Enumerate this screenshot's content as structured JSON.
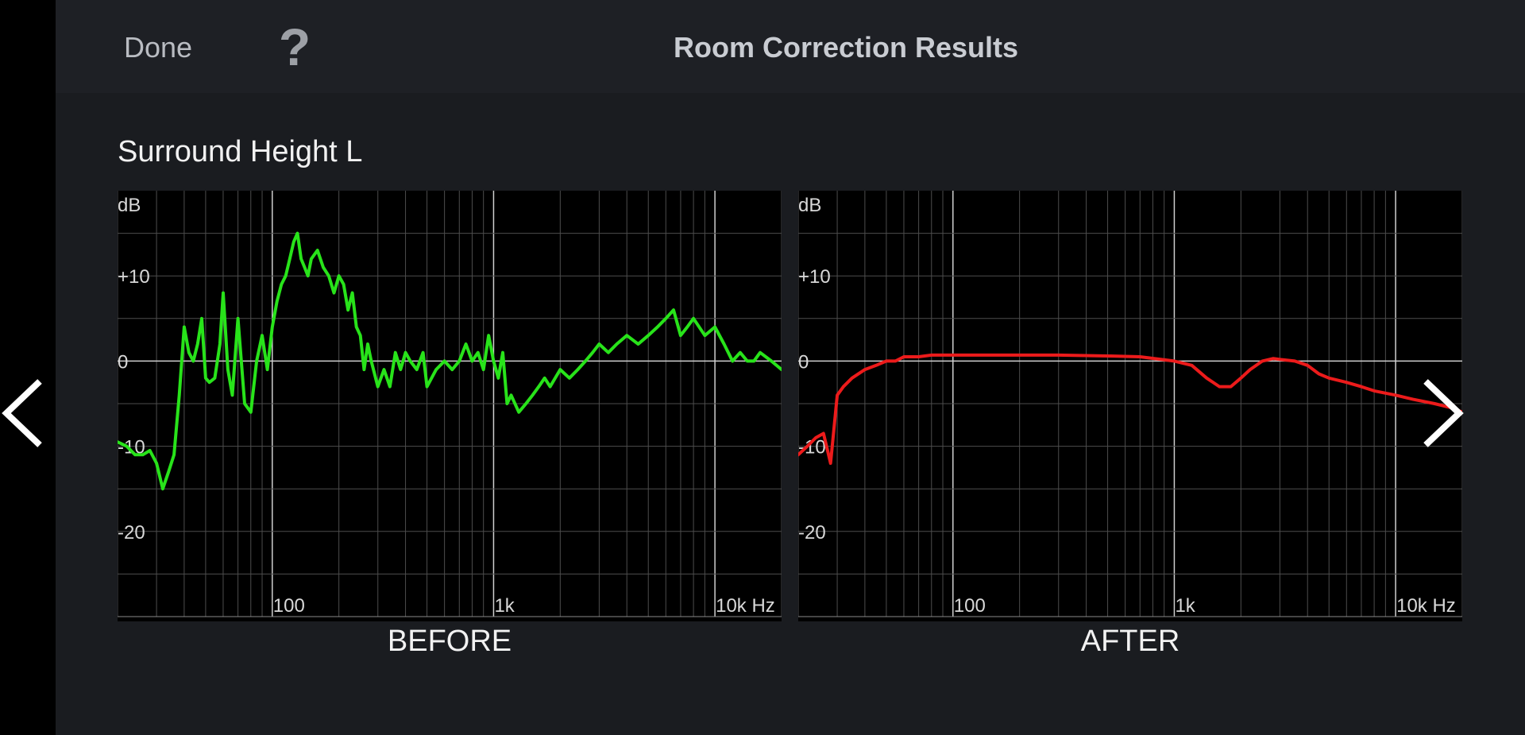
{
  "header": {
    "done_label": "Done",
    "help_label": "?",
    "title": "Room Correction Results"
  },
  "speaker": {
    "name": "Surround Height L"
  },
  "colors": {
    "before_curve": "#28e31a",
    "after_curve": "#ec1b1b",
    "grid": "#555555",
    "zero_line": "#d0d0d0"
  },
  "icons": {
    "prev": "chevron-left-icon",
    "next": "chevron-right-icon"
  },
  "chart_data": [
    {
      "type": "line",
      "caption": "BEFORE",
      "ylabel": "dB",
      "y_tick_labels": [
        "+10",
        "0",
        "-10",
        "-20"
      ],
      "y_ticks": [
        10,
        0,
        -10,
        -20
      ],
      "x_tick_labels": [
        "100",
        "1k",
        "10k Hz"
      ],
      "x_ticks": [
        100,
        1000,
        10000
      ],
      "x_scale": "log",
      "xlim": [
        20,
        20000
      ],
      "ylim": [
        -30,
        20
      ],
      "grid": true,
      "series": [
        {
          "color": "#28e31a",
          "x": [
            20,
            22,
            24,
            26,
            28,
            30,
            32,
            34,
            36,
            38,
            40,
            42,
            44,
            46,
            48,
            50,
            52,
            55,
            58,
            60,
            63,
            66,
            70,
            75,
            80,
            85,
            90,
            95,
            100,
            105,
            110,
            115,
            120,
            125,
            130,
            135,
            140,
            145,
            150,
            160,
            170,
            180,
            190,
            200,
            210,
            220,
            230,
            240,
            250,
            260,
            270,
            280,
            300,
            320,
            340,
            360,
            380,
            400,
            420,
            450,
            480,
            500,
            550,
            600,
            650,
            700,
            750,
            800,
            850,
            900,
            950,
            1000,
            1050,
            1100,
            1150,
            1200,
            1300,
            1400,
            1500,
            1600,
            1700,
            1800,
            2000,
            2200,
            2400,
            2600,
            2800,
            3000,
            3300,
            3600,
            4000,
            4500,
            5000,
            5500,
            6000,
            6500,
            7000,
            7500,
            8000,
            9000,
            10000,
            11000,
            12000,
            13000,
            14000,
            15000,
            16000,
            18000,
            20000
          ],
          "y": [
            -9.5,
            -10,
            -11,
            -11,
            -10.5,
            -12,
            -15,
            -13,
            -11,
            -4,
            4,
            1,
            0,
            2,
            5,
            -2,
            -2.5,
            -2,
            2,
            8,
            -1,
            -4,
            5,
            -5,
            -6,
            0,
            3,
            -1,
            4,
            7,
            9,
            10,
            12,
            14,
            15,
            12,
            11,
            10,
            12,
            13,
            11,
            10,
            8,
            10,
            9,
            6,
            8,
            4,
            3,
            -1,
            2,
            0,
            -3,
            -1,
            -3,
            1,
            -1,
            1,
            0,
            -1,
            1,
            -3,
            -1,
            0,
            -1,
            0,
            2,
            0,
            1,
            -1,
            3,
            0,
            -2,
            1,
            -5,
            -4,
            -6,
            -5,
            -4,
            -3,
            -2,
            -3,
            -1,
            -2,
            -1,
            0,
            1,
            2,
            1,
            2,
            3,
            2,
            3,
            4,
            5,
            6,
            3,
            4,
            5,
            3,
            4,
            2,
            0,
            1,
            0,
            0,
            1,
            0,
            -1
          ]
        }
      ]
    },
    {
      "type": "line",
      "caption": "AFTER",
      "ylabel": "dB",
      "y_tick_labels": [
        "+10",
        "0",
        "-10",
        "-20"
      ],
      "y_ticks": [
        10,
        0,
        -10,
        -20
      ],
      "x_tick_labels": [
        "100",
        "1k",
        "10k Hz"
      ],
      "x_ticks": [
        100,
        1000,
        10000
      ],
      "x_scale": "log",
      "xlim": [
        20,
        20000
      ],
      "ylim": [
        -30,
        20
      ],
      "grid": true,
      "series": [
        {
          "color": "#ec1b1b",
          "x": [
            20,
            22,
            24,
            26,
            28,
            30,
            32,
            35,
            40,
            45,
            50,
            55,
            60,
            70,
            80,
            100,
            150,
            200,
            300,
            500,
            700,
            1000,
            1200,
            1400,
            1600,
            1800,
            2000,
            2200,
            2500,
            2800,
            3000,
            3500,
            4000,
            4500,
            5000,
            6000,
            7000,
            8000,
            10000,
            12000,
            15000,
            18000,
            20000
          ],
          "y": [
            -11,
            -10,
            -9,
            -8.5,
            -12,
            -4,
            -3,
            -2,
            -1,
            -0.5,
            0,
            0,
            0.5,
            0.5,
            0.7,
            0.7,
            0.7,
            0.7,
            0.7,
            0.6,
            0.5,
            0,
            -0.5,
            -2,
            -3,
            -3,
            -2,
            -1,
            0,
            0.3,
            0.2,
            0,
            -0.5,
            -1.5,
            -2,
            -2.5,
            -3,
            -3.5,
            -4,
            -4.5,
            -5,
            -5.5,
            -6
          ]
        }
      ]
    }
  ]
}
